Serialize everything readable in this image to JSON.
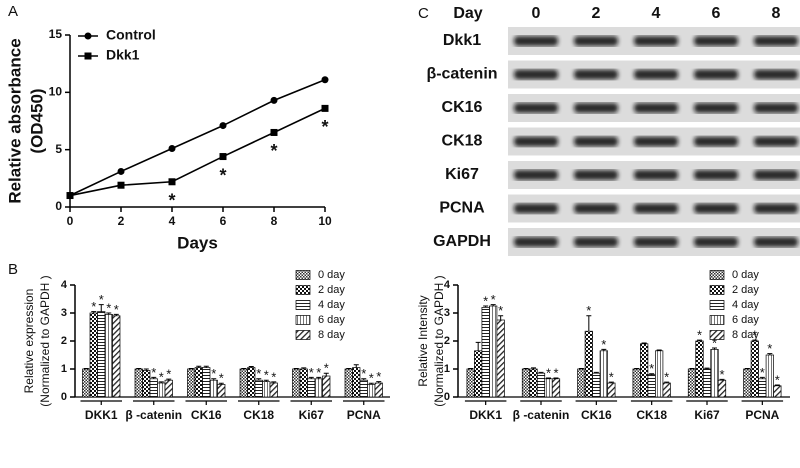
{
  "chart_data": [
    {
      "type": "line",
      "panel": "A",
      "xlabel": "Days",
      "ylabel": [
        "Relative absorbance",
        "(OD450)"
      ],
      "x": [
        0,
        2,
        4,
        6,
        8,
        10
      ],
      "xlim": [
        0,
        10
      ],
      "xticks": [
        0,
        2,
        4,
        6,
        8,
        10
      ],
      "ylim": [
        0,
        15
      ],
      "yticks": [
        0,
        5,
        10,
        15
      ],
      "legend": "top-left",
      "series": [
        {
          "name": "Control",
          "color": "#000",
          "marker": "circle",
          "values": [
            1,
            3.1,
            5.1,
            7.1,
            9.3,
            11.1
          ],
          "annotations": [
            null,
            null,
            null,
            null,
            null,
            null
          ]
        },
        {
          "name": "Dkk1",
          "color": "#000",
          "marker": "square",
          "values": [
            1,
            1.9,
            2.2,
            4.4,
            6.5,
            8.6
          ],
          "annotations": [
            null,
            null,
            "*",
            "*",
            "*",
            "*"
          ]
        }
      ]
    },
    {
      "type": "bar",
      "panel": "B",
      "ylabel": [
        "Relative expression",
        "(Normalized to GAPDH )"
      ],
      "categories": [
        "DKK1",
        "β -catenin",
        "CK16",
        "CK18",
        "Ki67",
        "PCNA"
      ],
      "ylim": [
        0,
        4
      ],
      "yticks": [
        0,
        1,
        2,
        3,
        4
      ],
      "legend": "top-right",
      "series": [
        {
          "name": "0 day",
          "pattern": "dots",
          "values": [
            1,
            1,
            1,
            1,
            1,
            1
          ],
          "errors": [
            0.02,
            0.02,
            0.02,
            0.02,
            0.02,
            0.02
          ],
          "annotations": [
            null,
            null,
            null,
            null,
            null,
            null
          ]
        },
        {
          "name": "2 day",
          "pattern": "checker",
          "values": [
            3.0,
            0.95,
            1.05,
            1.05,
            1.0,
            1.05
          ],
          "errors": [
            0.05,
            0.05,
            0.05,
            0.04,
            0.04,
            0.1
          ],
          "annotations": [
            "*",
            null,
            null,
            null,
            null,
            null
          ]
        },
        {
          "name": "4 day",
          "pattern": "horizontal",
          "values": [
            3.05,
            0.65,
            1.05,
            0.6,
            0.65,
            0.6
          ],
          "errors": [
            0.25,
            0.05,
            0.05,
            0.05,
            0.05,
            0.05
          ],
          "annotations": [
            "*",
            "*",
            null,
            "*",
            "*",
            "*"
          ]
        },
        {
          "name": "6 day",
          "pattern": "vertical",
          "values": [
            2.95,
            0.5,
            0.6,
            0.55,
            0.65,
            0.45
          ],
          "errors": [
            0.05,
            0.04,
            0.05,
            0.05,
            0.05,
            0.04
          ],
          "annotations": [
            "*",
            "*",
            "*",
            "*",
            "*",
            "*"
          ]
        },
        {
          "name": "8 day",
          "pattern": "diagonal",
          "values": [
            2.9,
            0.6,
            0.45,
            0.5,
            0.75,
            0.5
          ],
          "errors": [
            0.05,
            0.04,
            0.04,
            0.04,
            0.1,
            0.05
          ],
          "annotations": [
            "*",
            "*",
            "*",
            "*",
            "*",
            "*"
          ]
        }
      ]
    },
    {
      "type": "bar",
      "ylabel": [
        "Relative Intensity",
        "(Normalized to GAPDH )"
      ],
      "categories": [
        "DKK1",
        "β -catenin",
        "CK16",
        "CK18",
        "Ki67",
        "PCNA"
      ],
      "ylim": [
        0,
        4
      ],
      "yticks": [
        0,
        1,
        2,
        3,
        4
      ],
      "legend": "top-right",
      "series": [
        {
          "name": "0 day",
          "pattern": "dots",
          "values": [
            1,
            1,
            1,
            1,
            1,
            1
          ],
          "errors": [
            0.02,
            0.02,
            0.02,
            0.02,
            0.02,
            0.02
          ],
          "annotations": [
            null,
            null,
            null,
            null,
            null,
            null
          ]
        },
        {
          "name": "2 day",
          "pattern": "checker",
          "values": [
            1.65,
            1.0,
            2.35,
            1.9,
            2.0,
            2.0
          ],
          "errors": [
            0.3,
            0.04,
            0.55,
            0.03,
            0.03,
            0.03
          ],
          "annotations": [
            null,
            null,
            "*",
            null,
            "*",
            "*"
          ]
        },
        {
          "name": "4 day",
          "pattern": "horizontal",
          "values": [
            3.2,
            0.85,
            0.85,
            0.8,
            1.0,
            0.65
          ],
          "errors": [
            0.05,
            0.03,
            0.03,
            0.03,
            0.03,
            0.05
          ],
          "annotations": [
            "*",
            null,
            null,
            "*",
            null,
            "*"
          ]
        },
        {
          "name": "6 day",
          "pattern": "vertical",
          "values": [
            3.25,
            0.65,
            1.65,
            1.65,
            1.7,
            1.5
          ],
          "errors": [
            0.05,
            0.03,
            0.05,
            0.03,
            0.05,
            0.05
          ],
          "annotations": [
            "*",
            "*",
            "*",
            null,
            "*",
            "*"
          ]
        },
        {
          "name": "8 day",
          "pattern": "diagonal",
          "values": [
            2.75,
            0.65,
            0.5,
            0.5,
            0.6,
            0.4
          ],
          "errors": [
            0.15,
            0.03,
            0.03,
            0.03,
            0.03,
            0.03
          ],
          "annotations": [
            "*",
            "*",
            "*",
            "*",
            "*",
            "*"
          ]
        }
      ]
    }
  ],
  "blot": {
    "panel": "C",
    "header": "Day",
    "lanes": [
      "0",
      "2",
      "4",
      "6",
      "8"
    ],
    "rows": [
      "Dkk1",
      "β-catenin",
      "CK16",
      "CK18",
      "Ki67",
      "PCNA",
      "GAPDH"
    ]
  }
}
